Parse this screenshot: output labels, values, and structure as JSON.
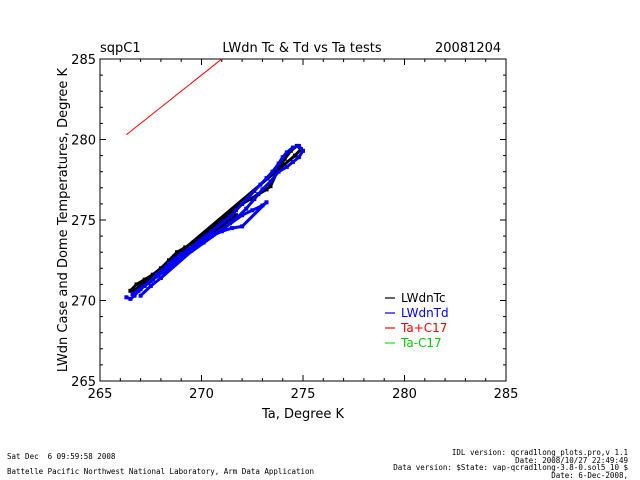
{
  "chart_data": {
    "type": "scatter",
    "site": "sqpC1",
    "title": "LWdn Tc & Td vs Ta tests",
    "date": "20081204",
    "xlabel": "Ta, Degree K",
    "ylabel": "LWdn Case and Dome Temperatures, Degree K",
    "xlim": [
      265,
      285
    ],
    "ylim": [
      265,
      285
    ],
    "xticks": [
      "265",
      "270",
      "275",
      "280",
      "285"
    ],
    "yticks": [
      "265",
      "270",
      "275",
      "280",
      "285"
    ],
    "legend_position": "bottom-right",
    "series": [
      {
        "name": "LWdnTc",
        "color": "#000000",
        "points": [
          [
            266.5,
            270.6
          ],
          [
            266.8,
            271.0
          ],
          [
            267.2,
            271.3
          ],
          [
            267.6,
            271.6
          ],
          [
            268.0,
            272.0
          ],
          [
            268.4,
            272.5
          ],
          [
            268.8,
            273.0
          ],
          [
            269.2,
            273.3
          ],
          [
            269.6,
            273.6
          ],
          [
            270.0,
            274.0
          ],
          [
            270.4,
            274.4
          ],
          [
            270.8,
            274.8
          ],
          [
            271.2,
            275.2
          ],
          [
            271.6,
            275.6
          ],
          [
            272.0,
            276.0
          ],
          [
            272.4,
            276.3
          ],
          [
            272.8,
            276.6
          ],
          [
            273.2,
            276.9
          ],
          [
            273.4,
            277.1
          ],
          [
            273.8,
            278.2
          ],
          [
            274.1,
            278.8
          ],
          [
            274.4,
            279.3
          ],
          [
            274.7,
            279.6
          ],
          [
            274.9,
            279.4
          ],
          [
            274.6,
            279.0
          ],
          [
            266.6,
            270.5
          ],
          [
            266.9,
            270.7
          ],
          [
            267.1,
            271.1
          ],
          [
            267.6,
            271.3
          ],
          [
            268.1,
            271.9
          ],
          [
            268.5,
            272.3
          ],
          [
            269.0,
            272.7
          ],
          [
            269.5,
            273.1
          ],
          [
            270.1,
            273.6
          ],
          [
            270.6,
            274.3
          ],
          [
            271.1,
            274.7
          ],
          [
            271.7,
            275.3
          ]
        ]
      },
      {
        "name": "LWdnTd",
        "color": "#0000ff",
        "points": [
          [
            266.3,
            270.2
          ],
          [
            266.5,
            270.1
          ],
          [
            266.7,
            270.3
          ],
          [
            266.9,
            270.6
          ],
          [
            267.2,
            270.9
          ],
          [
            267.5,
            271.2
          ],
          [
            267.8,
            271.6
          ],
          [
            268.1,
            271.9
          ],
          [
            268.4,
            272.3
          ],
          [
            268.7,
            272.6
          ],
          [
            269.0,
            272.9
          ],
          [
            269.3,
            273.1
          ],
          [
            269.6,
            273.4
          ],
          [
            269.9,
            273.7
          ],
          [
            270.2,
            274.0
          ],
          [
            270.5,
            274.3
          ],
          [
            270.8,
            274.6
          ],
          [
            271.1,
            274.9
          ],
          [
            271.4,
            275.2
          ],
          [
            271.7,
            275.6
          ],
          [
            272.0,
            276.0
          ],
          [
            272.3,
            276.4
          ],
          [
            272.6,
            276.8
          ],
          [
            272.9,
            277.2
          ],
          [
            273.2,
            277.6
          ],
          [
            273.5,
            278.0
          ],
          [
            273.8,
            278.5
          ],
          [
            274.0,
            278.9
          ],
          [
            274.2,
            279.2
          ],
          [
            274.5,
            279.5
          ],
          [
            274.8,
            279.6
          ],
          [
            275.0,
            279.3
          ],
          [
            274.8,
            278.9
          ],
          [
            274.5,
            278.6
          ],
          [
            274.2,
            278.3
          ],
          [
            273.8,
            278.0
          ],
          [
            273.4,
            277.4
          ],
          [
            273.0,
            276.9
          ],
          [
            272.6,
            276.3
          ],
          [
            272.2,
            275.7
          ],
          [
            271.8,
            275.2
          ],
          [
            271.4,
            274.8
          ],
          [
            271.0,
            274.4
          ],
          [
            270.6,
            274.1
          ],
          [
            270.2,
            273.8
          ],
          [
            269.8,
            273.5
          ],
          [
            269.4,
            273.2
          ],
          [
            269.0,
            272.8
          ],
          [
            268.6,
            272.3
          ],
          [
            268.2,
            271.9
          ],
          [
            267.8,
            271.5
          ],
          [
            267.4,
            271.1
          ],
          [
            267.0,
            270.7
          ],
          [
            266.6,
            270.4
          ],
          [
            272.0,
            275.3
          ],
          [
            272.5,
            275.6
          ],
          [
            273.0,
            275.9
          ],
          [
            273.2,
            276.1
          ],
          [
            272.0,
            274.6
          ],
          [
            271.5,
            274.5
          ],
          [
            271.0,
            274.3
          ],
          [
            270.5,
            274.0
          ],
          [
            270.0,
            273.6
          ],
          [
            268.0,
            271.4
          ],
          [
            267.5,
            270.9
          ],
          [
            267.0,
            270.3
          ]
        ]
      },
      {
        "name": "Ta+C17",
        "color": "#ff0000",
        "points": [
          [
            266.3,
            280.3
          ],
          [
            266.8,
            280.8
          ],
          [
            267.3,
            281.3
          ],
          [
            267.8,
            281.8
          ],
          [
            268.3,
            282.3
          ],
          [
            268.8,
            282.8
          ],
          [
            269.3,
            283.3
          ],
          [
            269.8,
            283.8
          ],
          [
            270.3,
            284.3
          ],
          [
            270.8,
            284.8
          ],
          [
            271.0,
            285.0
          ]
        ]
      },
      {
        "name": "Ta-C17",
        "color": "#00ff00",
        "points": []
      }
    ]
  },
  "footer": {
    "timestamp": "Sat Dec  6 09:59:58 2008",
    "organization": "Battelle Pacific Northwest National Laboratory, Arm Data Application",
    "idl_version": "IDL version: qcrad1long_plots.pro,v 1.1",
    "idl_date": "Date: 2008/10/27 22:49:49",
    "data_version": "Data version: $State: vap-qcrad1long-3.8-0.sol5_10 $",
    "data_date": "Date: 6-Dec-2008,"
  }
}
